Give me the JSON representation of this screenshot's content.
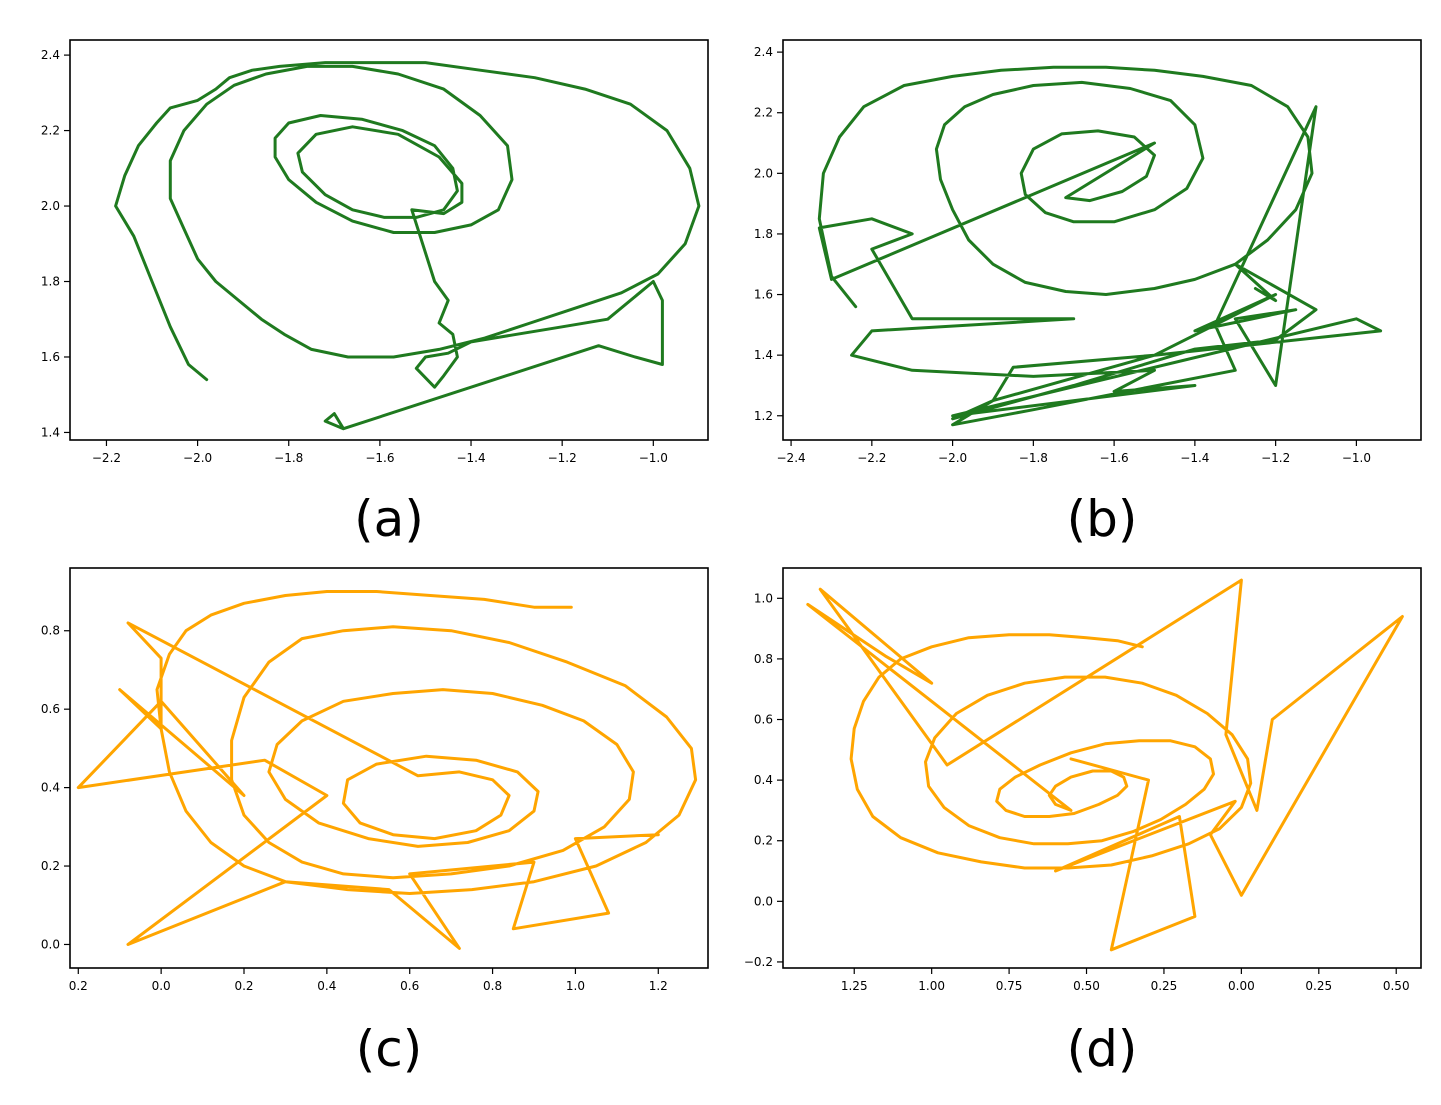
{
  "chart_data": [
    {
      "id": "a",
      "type": "line",
      "caption": "(a)",
      "color": "#1f7a1f",
      "xlim": [
        -2.28,
        -0.88
      ],
      "ylim": [
        1.38,
        2.44
      ],
      "xticks": [
        -2.2,
        -2.0,
        -1.8,
        -1.6,
        -1.4,
        -1.2,
        -1.0
      ],
      "xtick_labels": [
        "−2.2",
        "−2.0",
        "−1.8",
        "−1.6",
        "−1.4",
        "−1.2",
        "−1.0"
      ],
      "yticks": [
        1.4,
        1.6,
        1.8,
        2.0,
        2.2,
        2.4
      ],
      "ytick_labels": [
        "1.4",
        "1.6",
        "1.8",
        "2.0",
        "2.2",
        "2.4"
      ],
      "x": [
        -1.98,
        -2.02,
        -2.06,
        -2.1,
        -2.14,
        -2.18,
        -2.16,
        -2.13,
        -2.09,
        -2.06,
        -2.0,
        -1.96,
        -1.93,
        -1.88,
        -1.82,
        -1.72,
        -1.62,
        -1.5,
        -1.38,
        -1.26,
        -1.15,
        -1.05,
        -0.97,
        -0.92,
        -0.9,
        -0.93,
        -0.99,
        -1.07,
        -1.17,
        -1.27,
        -1.37,
        -1.47,
        -1.57,
        -1.67,
        -1.75,
        -1.81,
        -1.86,
        -1.91,
        -1.96,
        -2.0,
        -2.03,
        -2.06,
        -2.06,
        -2.03,
        -1.98,
        -1.92,
        -1.85,
        -1.76,
        -1.66,
        -1.56,
        -1.46,
        -1.38,
        -1.32,
        -1.31,
        -1.34,
        -1.4,
        -1.48,
        -1.57,
        -1.66,
        -1.74,
        -1.8,
        -1.83,
        -1.83,
        -1.8,
        -1.73,
        -1.64,
        -1.55,
        -1.48,
        -1.44,
        -1.43,
        -1.46,
        -1.52,
        -1.59,
        -1.66,
        -1.72,
        -1.77,
        -1.78,
        -1.74,
        -1.66,
        -1.56,
        -1.47,
        -1.42,
        -1.42,
        -1.46,
        -1.53,
        -1.48,
        -1.45,
        -1.47,
        -1.44,
        -1.43,
        -1.46,
        -1.48,
        -1.52,
        -1.5,
        -1.45,
        -1.4,
        -1.3,
        -1.2,
        -1.1,
        -1.0,
        -0.98,
        -0.98,
        -1.04,
        -1.12,
        -1.68,
        -1.72,
        -1.7,
        -1.68
      ],
      "y": [
        1.54,
        1.58,
        1.68,
        1.8,
        1.92,
        2.0,
        2.08,
        2.16,
        2.22,
        2.26,
        2.28,
        2.31,
        2.34,
        2.36,
        2.37,
        2.38,
        2.38,
        2.38,
        2.36,
        2.34,
        2.31,
        2.27,
        2.2,
        2.1,
        2.0,
        1.9,
        1.82,
        1.77,
        1.73,
        1.69,
        1.65,
        1.62,
        1.6,
        1.6,
        1.62,
        1.66,
        1.7,
        1.75,
        1.8,
        1.86,
        1.94,
        2.02,
        2.12,
        2.2,
        2.27,
        2.32,
        2.35,
        2.37,
        2.37,
        2.35,
        2.31,
        2.24,
        2.16,
        2.07,
        1.99,
        1.95,
        1.93,
        1.93,
        1.96,
        2.01,
        2.07,
        2.13,
        2.18,
        2.22,
        2.24,
        2.23,
        2.2,
        2.16,
        2.1,
        2.04,
        1.99,
        1.97,
        1.97,
        1.99,
        2.03,
        2.09,
        2.14,
        2.19,
        2.21,
        2.19,
        2.13,
        2.06,
        2.01,
        1.98,
        1.99,
        1.8,
        1.75,
        1.69,
        1.66,
        1.6,
        1.55,
        1.52,
        1.57,
        1.6,
        1.61,
        1.64,
        1.66,
        1.68,
        1.7,
        1.8,
        1.75,
        1.58,
        1.6,
        1.63,
        1.41,
        1.43,
        1.45,
        1.41
      ]
    },
    {
      "id": "b",
      "type": "line",
      "caption": "(b)",
      "color": "#1f7a1f",
      "xlim": [
        -2.42,
        -0.84
      ],
      "ylim": [
        1.12,
        2.44
      ],
      "xticks": [
        -2.4,
        -2.2,
        -2.0,
        -1.8,
        -1.6,
        -1.4,
        -1.2,
        -1.0
      ],
      "xtick_labels": [
        "−2.4",
        "−2.2",
        "−2.0",
        "−1.8",
        "−1.6",
        "−1.4",
        "−1.2",
        "−1.0"
      ],
      "yticks": [
        1.2,
        1.4,
        1.6,
        1.8,
        2.0,
        2.2,
        2.4
      ],
      "ytick_labels": [
        "1.2",
        "1.4",
        "1.6",
        "1.8",
        "2.0",
        "2.2",
        "2.4"
      ],
      "x": [
        -2.24,
        -2.3,
        -2.33,
        -2.32,
        -2.28,
        -2.22,
        -2.12,
        -2.0,
        -1.88,
        -1.75,
        -1.62,
        -1.5,
        -1.38,
        -1.26,
        -1.17,
        -1.12,
        -1.11,
        -1.15,
        -1.22,
        -1.3,
        -1.4,
        -1.5,
        -1.62,
        -1.72,
        -1.82,
        -1.9,
        -1.96,
        -2.0,
        -2.03,
        -2.04,
        -2.02,
        -1.97,
        -1.9,
        -1.8,
        -1.68,
        -1.56,
        -1.46,
        -1.4,
        -1.38,
        -1.42,
        -1.5,
        -1.6,
        -1.7,
        -1.77,
        -1.82,
        -1.83,
        -1.8,
        -1.73,
        -1.64,
        -1.55,
        -1.5,
        -1.52,
        -1.58,
        -1.66,
        -1.72,
        -1.5,
        -2.3,
        -2.33,
        -2.2,
        -2.1,
        -2.2,
        -2.1,
        -1.7,
        -2.2,
        -2.25,
        -2.1,
        -1.8,
        -1.5,
        -1.6,
        -1.4,
        -2.0,
        -1.0,
        -0.94,
        -1.5,
        -1.85,
        -1.9,
        -2.0,
        -1.8,
        -1.3,
        -1.35,
        -1.1,
        -1.2,
        -1.3,
        -1.15,
        -1.4,
        -1.2,
        -1.5,
        -1.9,
        -2.0,
        -1.7,
        -1.4,
        -1.2,
        -1.1,
        -1.3,
        -1.2,
        -1.25
      ],
      "y": [
        1.56,
        1.66,
        1.85,
        2.0,
        2.12,
        2.22,
        2.29,
        2.32,
        2.34,
        2.35,
        2.35,
        2.34,
        2.32,
        2.29,
        2.22,
        2.12,
        2.0,
        1.88,
        1.78,
        1.7,
        1.65,
        1.62,
        1.6,
        1.61,
        1.64,
        1.7,
        1.78,
        1.88,
        1.98,
        2.08,
        2.16,
        2.22,
        2.26,
        2.29,
        2.3,
        2.28,
        2.24,
        2.16,
        2.05,
        1.95,
        1.88,
        1.84,
        1.84,
        1.87,
        1.93,
        2.0,
        2.08,
        2.13,
        2.14,
        2.12,
        2.06,
        1.99,
        1.94,
        1.91,
        1.92,
        2.1,
        1.65,
        1.82,
        1.85,
        1.8,
        1.75,
        1.52,
        1.52,
        1.48,
        1.4,
        1.35,
        1.33,
        1.35,
        1.28,
        1.3,
        1.2,
        1.52,
        1.48,
        1.4,
        1.36,
        1.25,
        1.17,
        1.22,
        1.35,
        1.5,
        2.22,
        1.3,
        1.52,
        1.55,
        1.48,
        1.6,
        1.4,
        1.25,
        1.19,
        1.3,
        1.42,
        1.45,
        1.55,
        1.7,
        1.58,
        1.62
      ]
    },
    {
      "id": "c",
      "type": "line",
      "caption": "(c)",
      "color": "#ffa500",
      "xlim": [
        -0.22,
        1.32
      ],
      "ylim": [
        -0.06,
        0.96
      ],
      "xticks": [
        -0.2,
        0.0,
        0.2,
        0.4,
        0.6,
        0.8,
        1.0,
        1.2
      ],
      "xtick_labels": [
        "0.2",
        "0.0",
        "0.2",
        "0.4",
        "0.6",
        "0.8",
        "1.0",
        "1.2"
      ],
      "yticks": [
        0.0,
        0.2,
        0.4,
        0.6,
        0.8
      ],
      "ytick_labels": [
        "0.0",
        "0.2",
        "0.4",
        "0.6",
        "0.8"
      ],
      "x": [
        0.99,
        0.9,
        0.78,
        0.65,
        0.52,
        0.4,
        0.3,
        0.2,
        0.12,
        0.06,
        0.02,
        -0.01,
        0.0,
        0.02,
        0.06,
        0.12,
        0.2,
        0.3,
        0.45,
        0.6,
        0.75,
        0.9,
        1.05,
        1.17,
        1.25,
        1.29,
        1.28,
        1.22,
        1.12,
        0.98,
        0.84,
        0.7,
        0.56,
        0.44,
        0.34,
        0.26,
        0.2,
        0.17,
        0.17,
        0.2,
        0.26,
        0.34,
        0.44,
        0.56,
        0.7,
        0.84,
        0.97,
        1.07,
        1.13,
        1.14,
        1.1,
        1.02,
        0.92,
        0.8,
        0.68,
        0.56,
        0.44,
        0.34,
        0.28,
        0.26,
        0.3,
        0.38,
        0.5,
        0.62,
        0.74,
        0.84,
        0.9,
        0.91,
        0.86,
        0.76,
        0.64,
        0.52,
        0.45,
        0.44,
        0.48,
        0.56,
        0.66,
        0.76,
        0.82,
        0.84,
        0.8,
        0.72,
        0.62,
        -0.08,
        0.0,
        0.0,
        -0.1,
        0.2,
        0.0,
        -0.2,
        0.25,
        0.4,
        -0.08,
        0.3,
        0.55,
        0.72,
        0.6,
        0.9,
        0.85,
        1.08,
        1.0,
        1.2
      ],
      "y": [
        0.86,
        0.86,
        0.88,
        0.89,
        0.9,
        0.9,
        0.89,
        0.87,
        0.84,
        0.8,
        0.74,
        0.65,
        0.55,
        0.44,
        0.34,
        0.26,
        0.2,
        0.16,
        0.14,
        0.13,
        0.14,
        0.16,
        0.2,
        0.26,
        0.33,
        0.42,
        0.5,
        0.58,
        0.66,
        0.72,
        0.77,
        0.8,
        0.81,
        0.8,
        0.78,
        0.72,
        0.63,
        0.52,
        0.42,
        0.33,
        0.26,
        0.21,
        0.18,
        0.17,
        0.18,
        0.2,
        0.24,
        0.3,
        0.37,
        0.44,
        0.51,
        0.57,
        0.61,
        0.64,
        0.65,
        0.64,
        0.62,
        0.57,
        0.51,
        0.44,
        0.37,
        0.31,
        0.27,
        0.25,
        0.26,
        0.29,
        0.34,
        0.39,
        0.44,
        0.47,
        0.48,
        0.46,
        0.42,
        0.36,
        0.31,
        0.28,
        0.27,
        0.29,
        0.33,
        0.38,
        0.42,
        0.44,
        0.43,
        0.82,
        0.73,
        0.55,
        0.65,
        0.38,
        0.62,
        0.4,
        0.47,
        0.38,
        0.0,
        0.16,
        0.14,
        -0.01,
        0.18,
        0.21,
        0.04,
        0.08,
        0.27,
        0.28
      ]
    },
    {
      "id": "d",
      "type": "line",
      "caption": "(d)",
      "color": "#ffa500",
      "x_axis_reversed": true,
      "xlim": [
        1.48,
        -0.58
      ],
      "ylim": [
        -0.22,
        1.1
      ],
      "xticks": [
        1.25,
        1.0,
        0.75,
        0.5,
        0.25,
        0.0,
        -0.25,
        -0.5
      ],
      "xtick_labels": [
        "1.25",
        "1.00",
        "0.75",
        "0.50",
        "0.25",
        "0.00",
        "0.25",
        "0.50"
      ],
      "yticks": [
        -0.2,
        0.0,
        0.2,
        0.4,
        0.6,
        0.8,
        1.0
      ],
      "ytick_labels": [
        "−0.2",
        "0.0",
        "0.2",
        "0.4",
        "0.6",
        "0.8",
        "1.0"
      ],
      "x": [
        0.32,
        0.4,
        0.5,
        0.62,
        0.75,
        0.88,
        1.0,
        1.1,
        1.17,
        1.22,
        1.25,
        1.26,
        1.24,
        1.19,
        1.1,
        0.98,
        0.84,
        0.7,
        0.56,
        0.42,
        0.29,
        0.17,
        0.07,
        0.0,
        -0.03,
        -0.02,
        0.03,
        0.11,
        0.21,
        0.32,
        0.44,
        0.57,
        0.7,
        0.82,
        0.92,
        0.99,
        1.02,
        1.01,
        0.96,
        0.88,
        0.78,
        0.67,
        0.56,
        0.45,
        0.35,
        0.26,
        0.18,
        0.12,
        0.09,
        0.1,
        0.15,
        0.23,
        0.33,
        0.44,
        0.55,
        0.65,
        0.73,
        0.78,
        0.79,
        0.76,
        0.7,
        0.62,
        0.54,
        0.46,
        0.4,
        0.37,
        0.38,
        0.42,
        0.48,
        0.55,
        0.6,
        0.62,
        0.6,
        0.55,
        1.4,
        1.15,
        1.0,
        1.36,
        0.95,
        0.0,
        0.05,
        -0.05,
        -0.1,
        -0.52,
        0.0,
        0.1,
        0.02,
        0.6,
        0.2,
        0.15,
        0.42,
        0.3,
        0.55
      ],
      "y": [
        0.84,
        0.86,
        0.87,
        0.88,
        0.88,
        0.87,
        0.84,
        0.8,
        0.74,
        0.66,
        0.57,
        0.47,
        0.37,
        0.28,
        0.21,
        0.16,
        0.13,
        0.11,
        0.11,
        0.12,
        0.15,
        0.19,
        0.24,
        0.31,
        0.39,
        0.47,
        0.55,
        0.62,
        0.68,
        0.72,
        0.74,
        0.74,
        0.72,
        0.68,
        0.62,
        0.54,
        0.46,
        0.38,
        0.31,
        0.25,
        0.21,
        0.19,
        0.19,
        0.2,
        0.23,
        0.27,
        0.32,
        0.37,
        0.42,
        0.47,
        0.51,
        0.53,
        0.53,
        0.52,
        0.49,
        0.45,
        0.41,
        0.37,
        0.33,
        0.3,
        0.28,
        0.28,
        0.29,
        0.32,
        0.35,
        0.38,
        0.41,
        0.43,
        0.43,
        0.41,
        0.38,
        0.35,
        0.32,
        0.3,
        0.98,
        0.81,
        0.72,
        1.03,
        0.45,
        1.06,
        0.55,
        0.3,
        0.6,
        0.94,
        0.02,
        0.22,
        0.33,
        0.1,
        0.28,
        -0.05,
        -0.16,
        0.4,
        0.47
      ]
    }
  ]
}
